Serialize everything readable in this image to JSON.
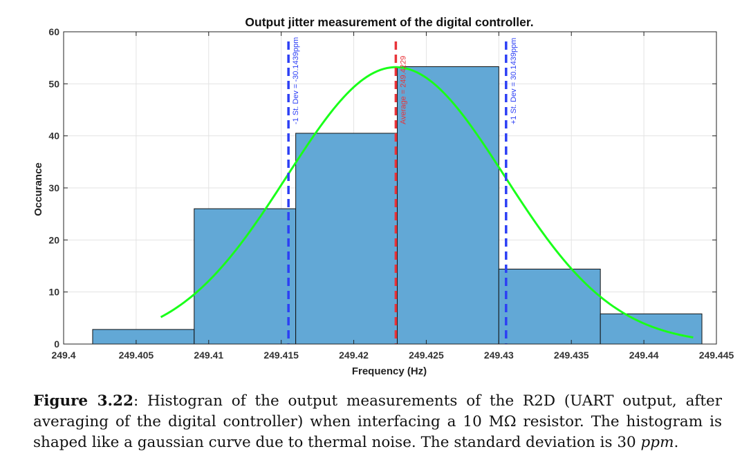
{
  "chart_data": {
    "type": "bar",
    "title": "Output jitter measurement of the digital controller.",
    "xlabel": "Frequency (Hz)",
    "ylabel": "Occurance",
    "xlim": [
      249.4,
      249.445
    ],
    "ylim": [
      0,
      60
    ],
    "xticks": [
      249.4,
      249.405,
      249.41,
      249.415,
      249.42,
      249.425,
      249.43,
      249.435,
      249.44,
      249.445
    ],
    "xtick_labels": [
      "249.4",
      "249.405",
      "249.41",
      "249.415",
      "249.42",
      "249.425",
      "249.43",
      "249.435",
      "249.44",
      "249.445"
    ],
    "yticks": [
      0,
      10,
      20,
      30,
      40,
      50,
      60
    ],
    "ytick_labels": [
      "0",
      "10",
      "20",
      "30",
      "40",
      "50",
      "60"
    ],
    "grid": true,
    "bins": [
      {
        "x0": 249.402,
        "x1": 249.409,
        "value": 2.8
      },
      {
        "x0": 249.409,
        "x1": 249.416,
        "value": 26
      },
      {
        "x0": 249.416,
        "x1": 249.423,
        "value": 40.5
      },
      {
        "x0": 249.423,
        "x1": 249.43,
        "value": 53.3
      },
      {
        "x0": 249.43,
        "x1": 249.437,
        "value": 14.4
      },
      {
        "x0": 249.437,
        "x1": 249.444,
        "value": 5.8
      }
    ],
    "bar_color": "#62a8d6",
    "fit": {
      "type": "gaussian",
      "mean": 249.4229,
      "sigma": 0.0075,
      "peak": 53.2,
      "x_range": [
        249.4067,
        249.4434
      ],
      "color": "#1aff1a"
    },
    "reference_lines": [
      {
        "x": 249.4155,
        "label": "-1 St. Dev = -30.1439ppm",
        "color": "#2c3ff5"
      },
      {
        "x": 249.4229,
        "label": "Average = 249.4229",
        "color": "#e8343a"
      },
      {
        "x": 249.4305,
        "label": "+1 St. Dev = 30.1439ppm",
        "color": "#2c3ff5"
      }
    ]
  },
  "caption": {
    "label": "Figure 3.22",
    "text": ": Histogran of the output measurements of the R2D (UART output, after averaging of the digital controller) when interfacing a 10 MΩ resistor. The histogram is shaped like a gaussian curve due to thermal noise. The standard deviation is 30 ",
    "unit": "ppm",
    "end": "."
  }
}
